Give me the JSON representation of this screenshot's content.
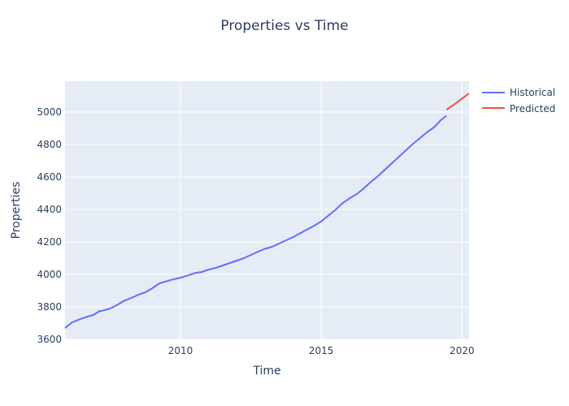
{
  "chart_data": {
    "type": "line",
    "title": "Properties vs Time",
    "xlabel": "Time",
    "ylabel": "Properties",
    "xlim": [
      2005.9,
      2020.25
    ],
    "ylim": [
      3600,
      5190
    ],
    "x_ticks": [
      2010,
      2015,
      2020
    ],
    "y_ticks": [
      3600,
      3800,
      4000,
      4200,
      4400,
      4600,
      4800,
      5000
    ],
    "grid": true,
    "legend_position": "top-right",
    "series": [
      {
        "name": "Historical",
        "color": "#636efa",
        "x": [
          2005.9,
          2006.15,
          2006.4,
          2006.65,
          2006.9,
          2007.1,
          2007.3,
          2007.5,
          2007.75,
          2008.0,
          2008.25,
          2008.5,
          2008.75,
          2009.0,
          2009.25,
          2009.5,
          2009.75,
          2010.0,
          2010.25,
          2010.5,
          2010.75,
          2011.0,
          2011.25,
          2011.5,
          2011.75,
          2012.0,
          2012.25,
          2012.5,
          2012.75,
          2013.0,
          2013.25,
          2013.5,
          2013.75,
          2014.0,
          2014.25,
          2014.5,
          2014.75,
          2015.0,
          2015.25,
          2015.5,
          2015.75,
          2016.0,
          2016.25,
          2016.5,
          2016.75,
          2017.0,
          2017.25,
          2017.5,
          2017.75,
          2018.0,
          2018.25,
          2018.5,
          2018.75,
          2019.0,
          2019.25,
          2019.45
        ],
        "values": [
          3670,
          3705,
          3722,
          3738,
          3750,
          3772,
          3780,
          3790,
          3812,
          3838,
          3855,
          3875,
          3890,
          3915,
          3945,
          3958,
          3970,
          3980,
          3993,
          4008,
          4015,
          4030,
          4040,
          4055,
          4070,
          4085,
          4100,
          4120,
          4140,
          4158,
          4170,
          4190,
          4210,
          4230,
          4253,
          4277,
          4300,
          4327,
          4362,
          4397,
          4438,
          4468,
          4493,
          4528,
          4568,
          4603,
          4643,
          4683,
          4723,
          4763,
          4803,
          4838,
          4875,
          4905,
          4950,
          4978
        ]
      },
      {
        "name": "Predicted",
        "color": "#ef553b",
        "x": [
          2019.45,
          2019.75,
          2020.0,
          2020.25
        ],
        "values": [
          5015,
          5050,
          5083,
          5115
        ]
      }
    ]
  }
}
